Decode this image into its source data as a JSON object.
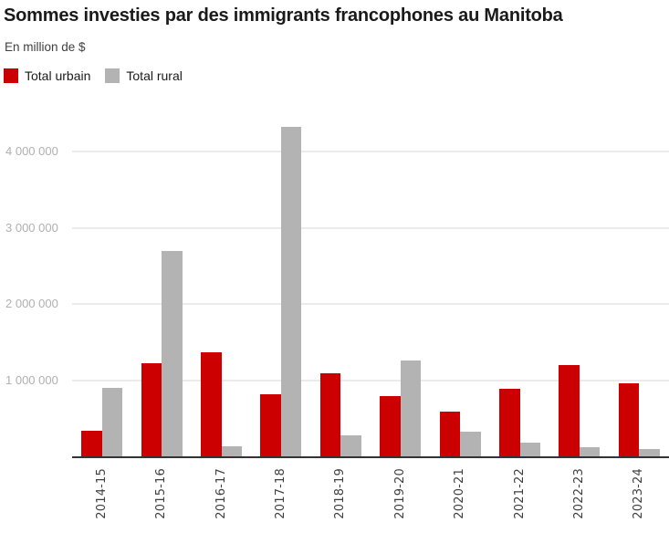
{
  "header": {
    "title": "Sommes investies par des immigrants francophones au Manitoba",
    "subtitle": "En million de $"
  },
  "legend": {
    "items": [
      {
        "label": "Total urbain",
        "color": "#cc0000"
      },
      {
        "label": "Total rural",
        "color": "#b3b3b3"
      }
    ]
  },
  "colors": {
    "urban": "#cc0000",
    "rural": "#b3b3b3",
    "gridline": "#ebebeb",
    "axis": "#333333",
    "ytick_text": "#b0b0b0",
    "xtick_text": "#404040"
  },
  "chart_data": {
    "type": "bar",
    "title": "Sommes investies par des immigrants francophones au Manitoba",
    "subtitle": "En million de $",
    "xlabel": "",
    "ylabel": "En million de $",
    "categories": [
      "2014-15",
      "2015-16",
      "2016-17",
      "2017-18",
      "2018-19",
      "2019-20",
      "2020-21",
      "2021-22",
      "2022-23",
      "2023-24"
    ],
    "series": [
      {
        "name": "Total urbain",
        "color": "#cc0000",
        "values": [
          330000,
          1220000,
          1370000,
          810000,
          1090000,
          790000,
          590000,
          890000,
          1200000,
          960000
        ]
      },
      {
        "name": "Total rural",
        "color": "#b3b3b3",
        "values": [
          900000,
          2700000,
          130000,
          4330000,
          270000,
          1260000,
          320000,
          180000,
          120000,
          100000
        ]
      }
    ],
    "ylim": [
      0,
      4560000
    ],
    "yticks": [
      1000000,
      2000000,
      3000000,
      4000000
    ],
    "ytick_labels": [
      "1 000 000",
      "2 000 000",
      "3 000 000",
      "4 000 000"
    ],
    "grid": true,
    "legend_position": "top-left"
  }
}
